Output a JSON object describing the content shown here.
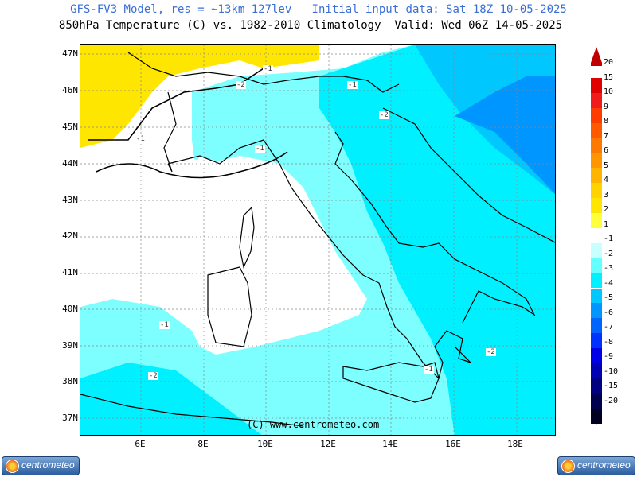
{
  "header": {
    "line1": "GFS-FV3 Model, res = ~13km 127lev   Initial input data: Sat 18Z 10-05-2025",
    "line2": "850hPa Temperature (C) vs. 1982-2010 Climatology  Valid: Wed 06Z 14-05-2025"
  },
  "axes": {
    "lat": [
      "47N",
      "46N",
      "45N",
      "44N",
      "43N",
      "42N",
      "41N",
      "40N",
      "39N",
      "38N",
      "37N"
    ],
    "lon": [
      "6E",
      "8E",
      "10E",
      "12E",
      "14E",
      "16E",
      "18E"
    ]
  },
  "contour_labels": [
    "-1",
    "-2",
    "-1",
    "-2",
    "-1",
    "-1",
    "-2",
    "-2",
    "-1",
    "-2",
    "-1"
  ],
  "credit": "(C) www.centrometeo.com",
  "colorbar": {
    "labels": [
      "20",
      "15",
      "10",
      "9",
      "8",
      "7",
      "6",
      "5",
      "4",
      "3",
      "2",
      "1",
      "-1",
      "-2",
      "-3",
      "-4",
      "-5",
      "-6",
      "-7",
      "-8",
      "-9",
      "-10",
      "-15",
      "-20"
    ],
    "colors": [
      "#c00000",
      "#e00000",
      "#f01c1c",
      "#ff3c00",
      "#ff5a00",
      "#ff7800",
      "#ff9600",
      "#ffb400",
      "#ffd200",
      "#ffe600",
      "#ffff3c",
      "#ffffff",
      "#c8ffff",
      "#64ffff",
      "#00f0ff",
      "#00c8ff",
      "#0096ff",
      "#0064ff",
      "#0032ff",
      "#0000e6",
      "#0000b4",
      "#000082",
      "#000050",
      "#000020"
    ]
  },
  "logo": {
    "text": "centrometeo"
  }
}
